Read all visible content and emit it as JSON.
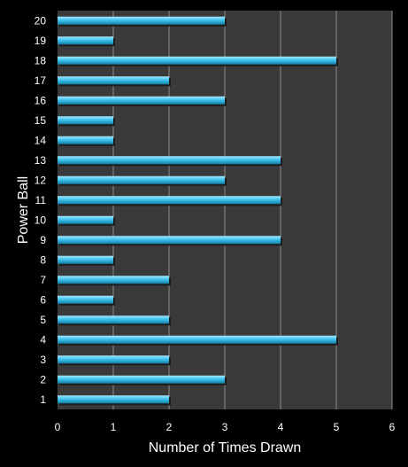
{
  "chart_data": {
    "type": "bar",
    "orientation": "horizontal",
    "title": "",
    "xlabel": "Number of Times Drawn",
    "ylabel": "Power Ball",
    "categories": [
      "1",
      "2",
      "3",
      "4",
      "5",
      "6",
      "7",
      "8",
      "9",
      "10",
      "11",
      "12",
      "13",
      "14",
      "15",
      "16",
      "17",
      "18",
      "19",
      "20"
    ],
    "values": [
      2,
      3,
      2,
      5,
      2,
      1,
      2,
      1,
      4,
      1,
      4,
      3,
      4,
      1,
      1,
      3,
      2,
      5,
      1,
      3
    ],
    "xlim": [
      0,
      6
    ],
    "xticks": [
      "0",
      "1",
      "2",
      "3",
      "4",
      "5",
      "6"
    ],
    "grid": "vertical",
    "legend": "none",
    "colors": {
      "background": "#000000",
      "plot_area": "#3a3a3a",
      "gridline": "#8c8c8c",
      "bar": "#3fc3ee",
      "bar_highlight": "#a6e8ff",
      "bar_shadow": "#137fa6",
      "text": "#ffffff"
    }
  }
}
